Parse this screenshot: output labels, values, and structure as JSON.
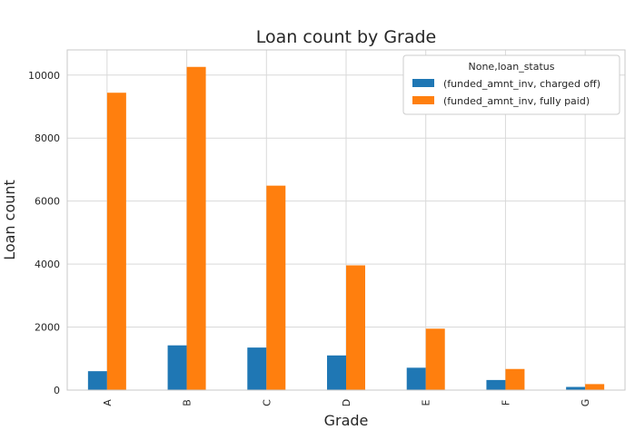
{
  "chart_data": {
    "type": "bar",
    "title": "Loan count by Grade",
    "xlabel": "Grade",
    "ylabel": "Loan count",
    "categories": [
      "A",
      "B",
      "C",
      "D",
      "E",
      "F",
      "G"
    ],
    "series": [
      {
        "name": "(funded_amnt_inv, charged off)",
        "color": "#1f77b4",
        "values": [
          600,
          1420,
          1350,
          1100,
          710,
          320,
          100
        ]
      },
      {
        "name": "(funded_amnt_inv, fully paid)",
        "color": "#ff7f0e",
        "values": [
          9440,
          10260,
          6490,
          3960,
          1950,
          670,
          190
        ]
      }
    ],
    "ylim": [
      0,
      10800
    ],
    "yticks": [
      0,
      2000,
      4000,
      6000,
      8000,
      10000
    ],
    "ytick_labels": [
      "0",
      "2000",
      "4000",
      "6000",
      "8000",
      "10000"
    ],
    "grid": true,
    "legend": {
      "title": "None,loan_status",
      "placement": "top-right"
    }
  }
}
